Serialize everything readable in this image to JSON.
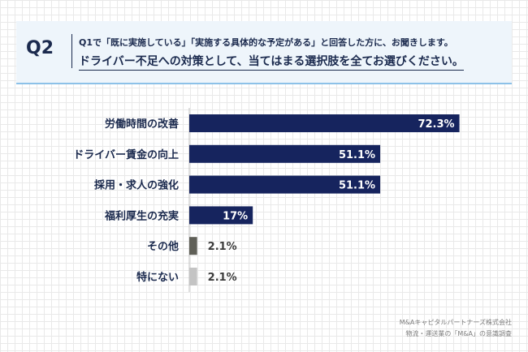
{
  "header": {
    "badge": "Q2",
    "line1": "Q1で「既に実施している」「実施する具体的な予定がある」と回答した方に、お聞きします。",
    "line2": "ドライバー不足への対策として、当てはまる選択肢を全てお選びください。"
  },
  "chart_data": {
    "type": "bar",
    "orientation": "horizontal",
    "categories": [
      "労働時間の改善",
      "ドライバー賃金の向上",
      "採用・求人の強化",
      "福利厚生の充実",
      "その他",
      "特にない"
    ],
    "values": [
      72.3,
      51.1,
      51.1,
      17,
      2.1,
      2.1
    ],
    "value_labels": [
      "72.3%",
      "51.1%",
      "51.1%",
      "17%",
      "2.1%",
      "2.1%"
    ],
    "colors": [
      "#16245e",
      "#16245e",
      "#16245e",
      "#16245e",
      "#5f5f57",
      "#c4c4c4"
    ],
    "xlim": [
      0,
      100
    ],
    "grid": true
  },
  "footer": {
    "line1": "M&Aキャピタルパートナーズ株式会社",
    "line2": "物流・運送業の「M&A」の意識調査"
  }
}
